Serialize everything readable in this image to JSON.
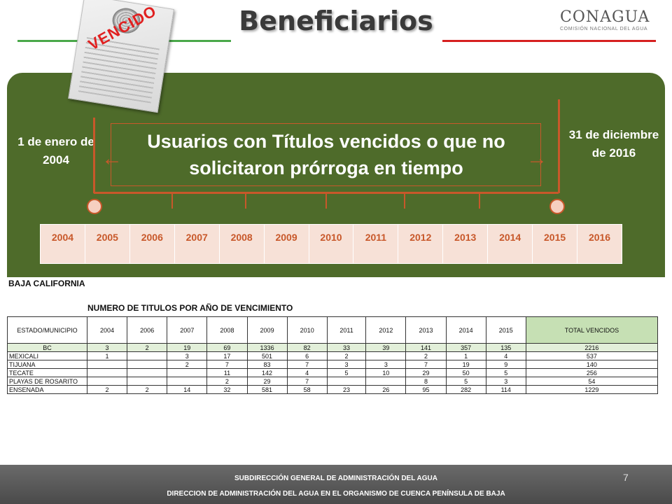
{
  "header": {
    "title": "Beneficiarios",
    "logo_name": "CONAGUA",
    "logo_subtitle": "COMISIÓN NACIONAL DEL AGUA",
    "stamp_text": "VENCIDO",
    "colors": {
      "green_line": "#4aa84a",
      "red_line": "#d62020"
    }
  },
  "timeline": {
    "start_label": "1 de enero de 2004",
    "end_label": "31 de diciembre de 2016",
    "main_text": "Usuarios con Títulos vencidos o que no solicitaron prórroga en tiempo",
    "years": [
      "2004",
      "2005",
      "2006",
      "2007",
      "2008",
      "2009",
      "2010",
      "2011",
      "2012",
      "2013",
      "2014",
      "2015",
      "2016"
    ],
    "colors": {
      "panel": "#4e6b2a",
      "accent": "#c8582a"
    }
  },
  "data": {
    "region": "BAJA CALIFORNIA",
    "table_title": "NUMERO DE TITULOS POR AÑO DE VENCIMIENTO",
    "headers": [
      "ESTADO/MUNICIPIO",
      "2004",
      "2006",
      "2007",
      "2008",
      "2009",
      "2010",
      "2011",
      "2012",
      "2013",
      "2014",
      "2015",
      "TOTAL VENCIDOS"
    ],
    "rows": [
      {
        "name": "BC",
        "values": [
          "3",
          "2",
          "19",
          "69",
          "1336",
          "82",
          "33",
          "39",
          "141",
          "357",
          "135",
          "2216"
        ]
      },
      {
        "name": "MEXICALI",
        "values": [
          "1",
          "",
          "3",
          "17",
          "501",
          "6",
          "2",
          "",
          "2",
          "1",
          "4",
          "537"
        ]
      },
      {
        "name": "TIJUANA",
        "values": [
          "",
          "",
          "2",
          "7",
          "83",
          "7",
          "3",
          "3",
          "7",
          "19",
          "9",
          "140"
        ]
      },
      {
        "name": "TECATE",
        "values": [
          "",
          "",
          "",
          "11",
          "142",
          "4",
          "5",
          "10",
          "29",
          "50",
          "5",
          "256"
        ]
      },
      {
        "name": "PLAYAS DE ROSARITO",
        "values": [
          "",
          "",
          "",
          "2",
          "29",
          "7",
          "",
          "",
          "8",
          "5",
          "3",
          "54"
        ]
      },
      {
        "name": "ENSENADA",
        "values": [
          "2",
          "2",
          "14",
          "32",
          "581",
          "58",
          "23",
          "26",
          "95",
          "282",
          "114",
          "1229"
        ]
      }
    ]
  },
  "footer": {
    "line1": "SUBDIRECCIÓN GENERAL DE ADMINISTRACIÓN DEL AGUA",
    "line2": "DIRECCION DE ADMINISTRACIÓN DEL AGUA EN EL ORGANISMO DE CUENCA PENÍNSULA DE BAJA",
    "page_number": "7"
  }
}
